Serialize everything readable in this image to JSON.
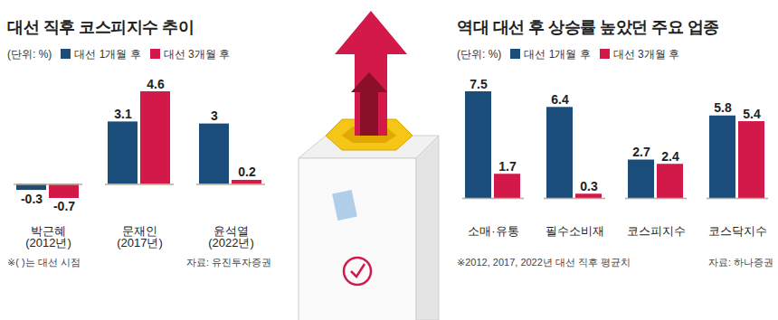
{
  "chart_data": [
    {
      "type": "bar",
      "title": "대선 직후 코스피지수 추이",
      "subtitle": "(단위: %)",
      "categories": [
        "박근혜\n(2012년)",
        "문재인\n(2017년)",
        "윤석열\n(2022년)"
      ],
      "series": [
        {
          "name": "대선 1개월 후",
          "color": "#1b4d7a",
          "values": [
            -0.3,
            3.1,
            3
          ]
        },
        {
          "name": "대선 3개월 후",
          "color": "#d2194a",
          "values": [
            -0.7,
            4.6,
            0.2
          ]
        }
      ],
      "data_labels": true,
      "tick_labels": "x",
      "grid": false,
      "legend": "top",
      "annotations": [
        "※( )는 대선 시점",
        "자료: 유진투자증권"
      ]
    },
    {
      "type": "bar",
      "title": "역대 대선 후 상승률 높았던 주요 업종",
      "subtitle": "(단위: %)",
      "categories": [
        "소매·유통",
        "필수소비재",
        "코스피지수",
        "코스닥지수"
      ],
      "series": [
        {
          "name": "대선 1개월 후",
          "color": "#1b4d7a",
          "values": [
            7.5,
            6.4,
            2.7,
            5.8
          ]
        },
        {
          "name": "대선 3개월 후",
          "color": "#d2194a",
          "values": [
            1.7,
            0.3,
            2.4,
            5.4
          ]
        }
      ],
      "data_labels": true,
      "tick_labels": "x",
      "grid": false,
      "legend": "top",
      "annotations": [
        "※2012, 2017, 2022년 대선 직후 평균치",
        "자료: 하나증권"
      ]
    }
  ]
}
